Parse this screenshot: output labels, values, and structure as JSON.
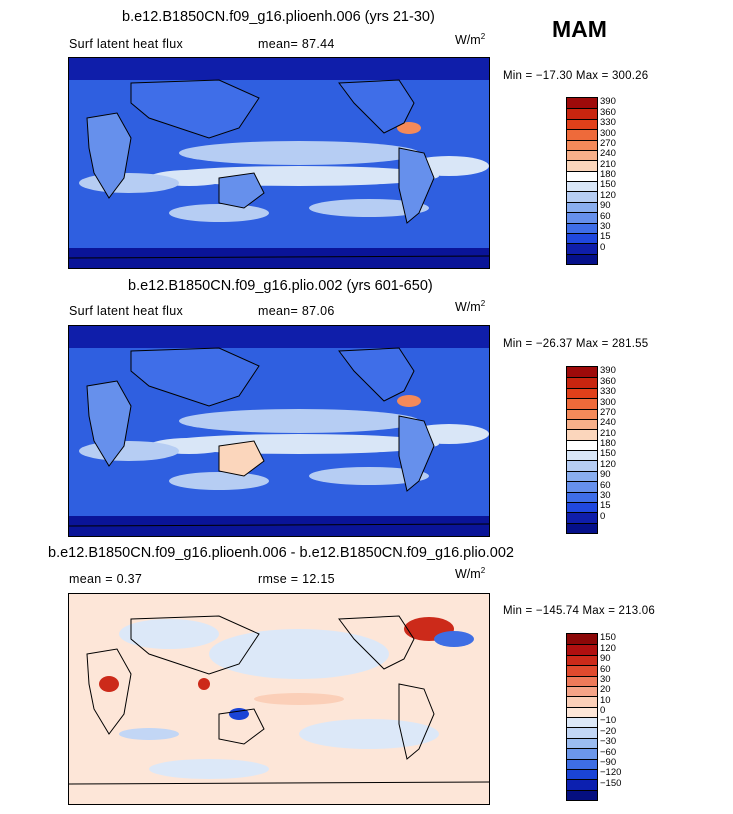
{
  "season": "MAM",
  "panels": [
    {
      "title": "b.e12.B1850CN.f09_g16.plioenh.006 (yrs 21-30)",
      "label_left": "Surf latent heat flux",
      "label_right": "mean=  87.44",
      "units": "W/m",
      "units_sup": "2",
      "minmax": "Min = −17.30 Max = 300.26",
      "colorbar_labels": [
        "390",
        "360",
        "330",
        "300",
        "270",
        "240",
        "210",
        "180",
        "150",
        "120",
        "90",
        "60",
        "30",
        "15",
        "0"
      ],
      "colorbar_colors": [
        "#9e0a0a",
        "#c8250f",
        "#e0401a",
        "#ee6a3a",
        "#f48a5a",
        "#f7b08a",
        "#fbd6bc",
        "#ffffff",
        "#d9e6f7",
        "#b6cdf3",
        "#8aaeef",
        "#6690ec",
        "#3f6ee8",
        "#2048de",
        "#0f1eaa",
        "#05108a"
      ]
    },
    {
      "title": "b.e12.B1850CN.f09_g16.plio.002 (yrs 601-650)",
      "label_left": "Surf latent heat flux",
      "label_right": "mean=  87.06",
      "units": "W/m",
      "units_sup": "2",
      "minmax": "Min = −26.37 Max = 281.55",
      "colorbar_labels": [
        "390",
        "360",
        "330",
        "300",
        "270",
        "240",
        "210",
        "180",
        "150",
        "120",
        "90",
        "60",
        "30",
        "15",
        "0"
      ],
      "colorbar_colors": [
        "#9e0a0a",
        "#c8250f",
        "#e0401a",
        "#ee6a3a",
        "#f48a5a",
        "#f7b08a",
        "#fbd6bc",
        "#ffffff",
        "#d9e6f7",
        "#b6cdf3",
        "#8aaeef",
        "#6690ec",
        "#3f6ee8",
        "#2048de",
        "#0f1eaa",
        "#05108a"
      ]
    },
    {
      "title": "b.e12.B1850CN.f09_g16.plioenh.006 - b.e12.B1850CN.f09_g16.plio.002",
      "label_left": "mean =    0.37",
      "label_right": "rmse =   12.15",
      "units": "W/m",
      "units_sup": "2",
      "minmax": "Min = −145.74 Max = 213.06",
      "colorbar_labels": [
        "150",
        "120",
        "90",
        "60",
        "30",
        "20",
        "10",
        "0",
        "−10",
        "−20",
        "−30",
        "−60",
        "−90",
        "−120",
        "−150"
      ],
      "colorbar_colors": [
        "#8c0808",
        "#b01010",
        "#cc2a1a",
        "#e04a2e",
        "#ee7a5a",
        "#f5a488",
        "#fbcfb8",
        "#fde6d8",
        "#dce8f8",
        "#c2d6f5",
        "#9bbcf0",
        "#6c97ea",
        "#3e6ee4",
        "#1a44d6",
        "#0c20b0",
        "#050f80"
      ]
    }
  ],
  "chart_data": [
    {
      "type": "heatmap",
      "title": "b.e12.B1850CN.f09_g16.plioenh.006 (yrs 21-30)",
      "variable": "Surf latent heat flux",
      "units": "W/m2",
      "mean": 87.44,
      "min": -17.3,
      "max": 300.26,
      "levels": [
        0,
        15,
        30,
        60,
        90,
        120,
        150,
        180,
        210,
        240,
        270,
        300,
        330,
        360,
        390
      ]
    },
    {
      "type": "heatmap",
      "title": "b.e12.B1850CN.f09_g16.plio.002 (yrs 601-650)",
      "variable": "Surf latent heat flux",
      "units": "W/m2",
      "mean": 87.06,
      "min": -26.37,
      "max": 281.55,
      "levels": [
        0,
        15,
        30,
        60,
        90,
        120,
        150,
        180,
        210,
        240,
        270,
        300,
        330,
        360,
        390
      ]
    },
    {
      "type": "heatmap",
      "title": "b.e12.B1850CN.f09_g16.plioenh.006 - b.e12.B1850CN.f09_g16.plio.002",
      "units": "W/m2",
      "mean": 0.37,
      "rmse": 12.15,
      "min": -145.74,
      "max": 213.06,
      "levels": [
        -150,
        -120,
        -90,
        -60,
        -30,
        -20,
        -10,
        0,
        10,
        20,
        30,
        60,
        90,
        120,
        150
      ]
    }
  ]
}
